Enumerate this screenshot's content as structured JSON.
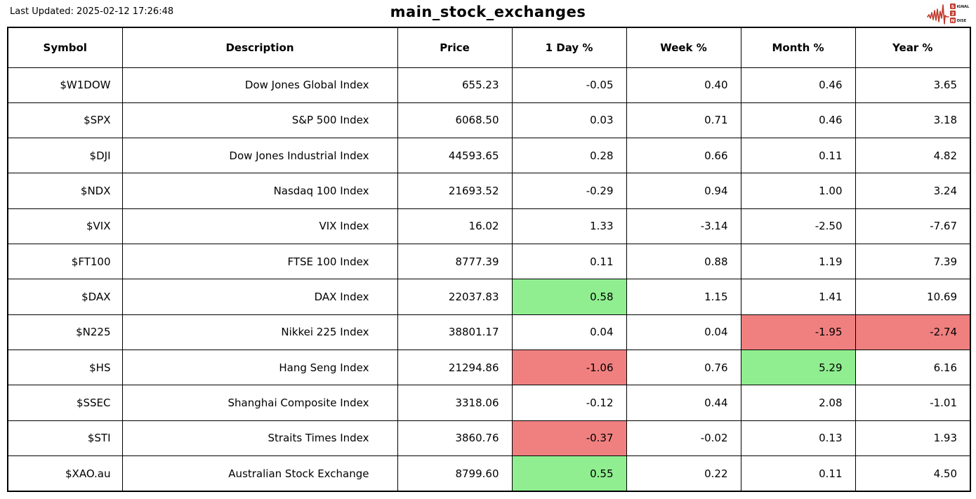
{
  "header": {
    "last_updated": "Last Updated: 2025-02-12 17:26:48",
    "title": "main_stock_exchanges"
  },
  "logo": {
    "name": "signal-2-noise-logo",
    "line1_box": "S",
    "line1_rest": "IGNAL",
    "line2_box": "2",
    "line3_box": "N",
    "line3_rest": "OISE",
    "waveform_color": "#c0392b",
    "box_color": "#c0392b",
    "box_text_color": "#ffffff",
    "small_text_color": "#1a1a1a"
  },
  "chart_data": {
    "type": "table",
    "title": "main_stock_exchanges",
    "last_updated": "Last Updated: 2025-02-12 17:26:48",
    "columns": [
      "Symbol",
      "Description",
      "Price",
      "1 Day %",
      "Week %",
      "Month %",
      "Year %"
    ],
    "highlight_colors": {
      "positive": "#90ee90",
      "negative": "#f08080"
    },
    "rows": [
      {
        "symbol": "$W1DOW",
        "description": "Dow Jones Global Index",
        "price": "655.23",
        "day_pct": "-0.05",
        "week_pct": "0.40",
        "month_pct": "0.46",
        "year_pct": "3.65",
        "highlights": {}
      },
      {
        "symbol": "$SPX",
        "description": "S&P 500 Index",
        "price": "6068.50",
        "day_pct": "0.03",
        "week_pct": "0.71",
        "month_pct": "0.46",
        "year_pct": "3.18",
        "highlights": {}
      },
      {
        "symbol": "$DJI",
        "description": "Dow Jones Industrial Index",
        "price": "44593.65",
        "day_pct": "0.28",
        "week_pct": "0.66",
        "month_pct": "0.11",
        "year_pct": "4.82",
        "highlights": {}
      },
      {
        "symbol": "$NDX",
        "description": "Nasdaq 100 Index",
        "price": "21693.52",
        "day_pct": "-0.29",
        "week_pct": "0.94",
        "month_pct": "1.00",
        "year_pct": "3.24",
        "highlights": {}
      },
      {
        "symbol": "$VIX",
        "description": "VIX Index",
        "price": "16.02",
        "day_pct": "1.33",
        "week_pct": "-3.14",
        "month_pct": "-2.50",
        "year_pct": "-7.67",
        "highlights": {}
      },
      {
        "symbol": "$FT100",
        "description": "FTSE 100 Index",
        "price": "8777.39",
        "day_pct": "0.11",
        "week_pct": "0.88",
        "month_pct": "1.19",
        "year_pct": "7.39",
        "highlights": {}
      },
      {
        "symbol": "$DAX",
        "description": "DAX Index",
        "price": "22037.83",
        "day_pct": "0.58",
        "week_pct": "1.15",
        "month_pct": "1.41",
        "year_pct": "10.69",
        "highlights": {
          "day_pct": "positive"
        }
      },
      {
        "symbol": "$N225",
        "description": "Nikkei 225 Index",
        "price": "38801.17",
        "day_pct": "0.04",
        "week_pct": "0.04",
        "month_pct": "-1.95",
        "year_pct": "-2.74",
        "highlights": {
          "month_pct": "negative",
          "year_pct": "negative"
        }
      },
      {
        "symbol": "$HS",
        "description": "Hang Seng Index",
        "price": "21294.86",
        "day_pct": "-1.06",
        "week_pct": "0.76",
        "month_pct": "5.29",
        "year_pct": "6.16",
        "highlights": {
          "day_pct": "negative",
          "month_pct": "positive"
        }
      },
      {
        "symbol": "$SSEC",
        "description": "Shanghai Composite Index",
        "price": "3318.06",
        "day_pct": "-0.12",
        "week_pct": "0.44",
        "month_pct": "2.08",
        "year_pct": "-1.01",
        "highlights": {}
      },
      {
        "symbol": "$STI",
        "description": "Straits Times Index",
        "price": "3860.76",
        "day_pct": "-0.37",
        "week_pct": "-0.02",
        "month_pct": "0.13",
        "year_pct": "1.93",
        "highlights": {
          "day_pct": "negative"
        }
      },
      {
        "symbol": "$XAO.au",
        "description": "Australian Stock Exchange",
        "price": "8799.60",
        "day_pct": "0.55",
        "week_pct": "0.22",
        "month_pct": "0.11",
        "year_pct": "4.50",
        "highlights": {
          "day_pct": "positive"
        }
      }
    ]
  }
}
